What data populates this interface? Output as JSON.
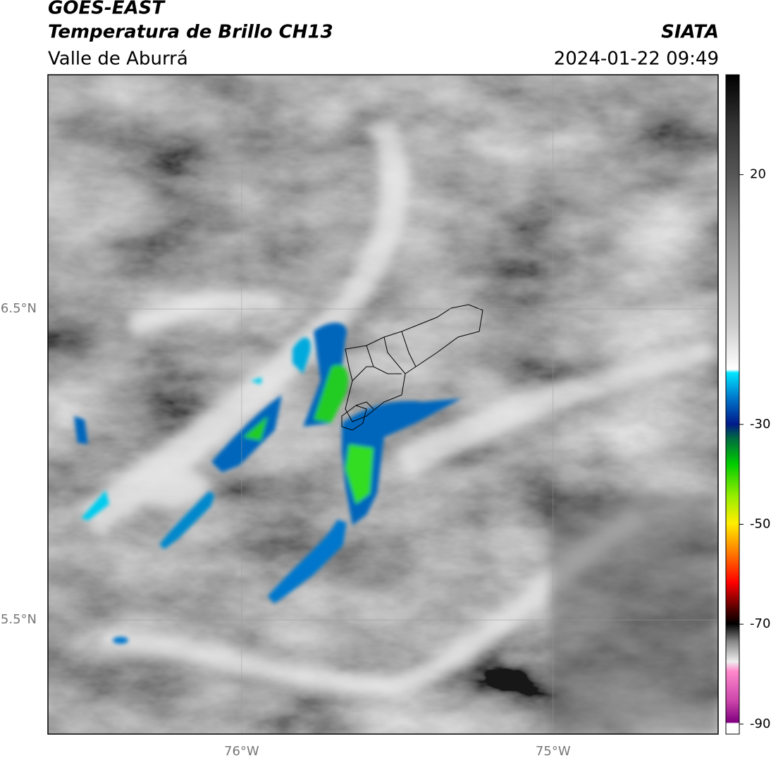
{
  "header": {
    "satellite": "GOES-EAST",
    "product": "Temperatura de Brillo CH13",
    "institution": "SIATA",
    "region": "Valle de Aburrá",
    "datetime": "2024-01-22 09:49"
  },
  "map": {
    "lat_lim": [
      5.133,
      7.253
    ],
    "lon_lim": [
      -76.622,
      -74.47
    ],
    "lat_ticks": [
      {
        "value": 6.5,
        "label": "6.5°N"
      },
      {
        "value": 5.5,
        "label": "5.5°N"
      }
    ],
    "lon_ticks": [
      {
        "value": -76,
        "label": "76°W"
      },
      {
        "value": -75,
        "label": "75°W"
      }
    ]
  },
  "colorbar": {
    "lim": [
      -92,
      40
    ],
    "ticks": [
      20,
      -30,
      -50,
      -70,
      -90
    ]
  }
}
